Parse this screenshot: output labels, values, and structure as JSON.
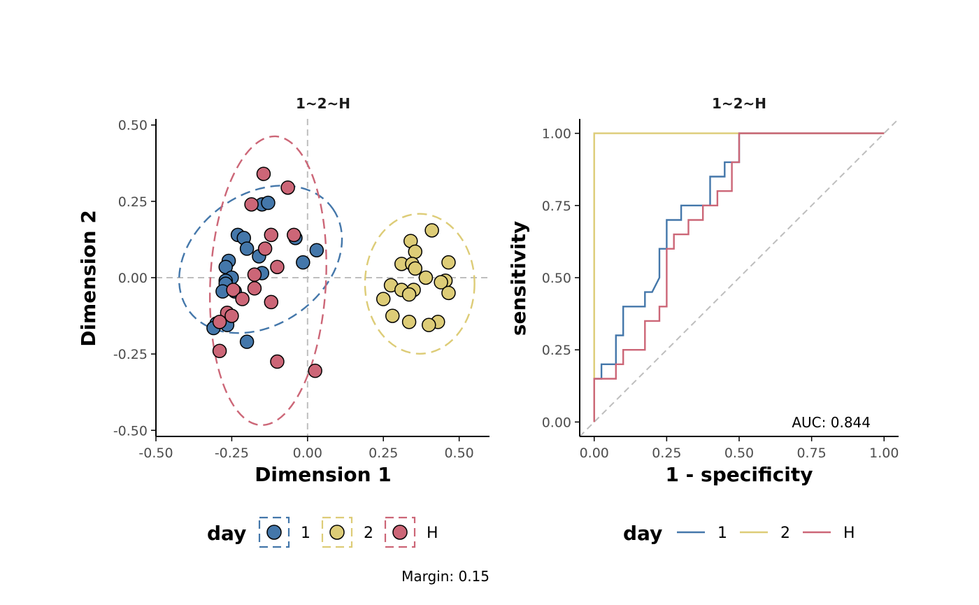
{
  "colors": {
    "1": "#4477AA",
    "2": "#DDCC77",
    "H": "#CC6677",
    "refline": "#BEBEBE",
    "axis": "#000000",
    "tick_text": "#4d4d4d"
  },
  "legend": {
    "title": "day",
    "labels": [
      "1",
      "2",
      "H"
    ]
  },
  "annotation": {
    "margin_text": "Margin: 0.15"
  },
  "chart_data": [
    {
      "type": "scatter",
      "title": "1~2~H",
      "xlabel": "Dimension 1",
      "ylabel": "Dimension 2",
      "xlim": [
        -0.5,
        0.6
      ],
      "ylim": [
        -0.52,
        0.52
      ],
      "xticks": [
        "-0.50",
        "-0.25",
        "0.00",
        "0.25",
        "0.50"
      ],
      "yticks": [
        "-0.50",
        "-0.25",
        "0.00",
        "0.25",
        "0.50"
      ],
      "xtick_values": [
        -0.5,
        -0.25,
        0,
        0.25,
        0.5
      ],
      "ytick_values": [
        -0.5,
        -0.25,
        0,
        0.25,
        0.5
      ],
      "reference_lines": {
        "x": 0,
        "y": 0
      },
      "ellipses": [
        {
          "group": "1",
          "center": [
            -0.155,
            0.06
          ],
          "radii": [
            0.29,
            0.215
          ],
          "angle_deg": 35
        },
        {
          "group": "2",
          "center": [
            0.37,
            -0.02
          ],
          "radii": [
            0.18,
            0.23
          ],
          "angle_deg": 0
        },
        {
          "group": "H",
          "center": [
            -0.13,
            -0.01
          ],
          "radii": [
            0.19,
            0.475
          ],
          "angle_deg": -3
        }
      ],
      "series": [
        {
          "name": "1",
          "points": [
            [
              -0.23,
              0.14
            ],
            [
              -0.21,
              0.13
            ],
            [
              -0.2,
              0.095
            ],
            [
              -0.16,
              0.07
            ],
            [
              -0.15,
              0.015
            ],
            [
              -0.15,
              0.24
            ],
            [
              -0.13,
              0.245
            ],
            [
              -0.04,
              0.13
            ],
            [
              -0.015,
              0.05
            ],
            [
              0.03,
              0.09
            ],
            [
              -0.26,
              0.055
            ],
            [
              -0.27,
              0.035
            ],
            [
              -0.25,
              0.0
            ],
            [
              -0.27,
              -0.01
            ],
            [
              -0.27,
              -0.02
            ],
            [
              -0.24,
              -0.045
            ],
            [
              -0.28,
              -0.045
            ],
            [
              -0.3,
              -0.15
            ],
            [
              -0.31,
              -0.165
            ],
            [
              -0.265,
              -0.155
            ],
            [
              -0.2,
              -0.21
            ]
          ]
        },
        {
          "name": "2",
          "points": [
            [
              0.34,
              0.12
            ],
            [
              0.41,
              0.155
            ],
            [
              0.355,
              0.085
            ],
            [
              0.31,
              0.045
            ],
            [
              0.345,
              0.045
            ],
            [
              0.355,
              0.03
            ],
            [
              0.465,
              0.05
            ],
            [
              0.39,
              0.0
            ],
            [
              0.455,
              -0.01
            ],
            [
              0.44,
              -0.015
            ],
            [
              0.275,
              -0.025
            ],
            [
              0.31,
              -0.04
            ],
            [
              0.35,
              -0.04
            ],
            [
              0.335,
              -0.055
            ],
            [
              0.465,
              -0.05
            ],
            [
              0.25,
              -0.07
            ],
            [
              0.28,
              -0.125
            ],
            [
              0.335,
              -0.145
            ],
            [
              0.43,
              -0.145
            ],
            [
              0.4,
              -0.155
            ]
          ]
        },
        {
          "name": "H",
          "points": [
            [
              -0.145,
              0.34
            ],
            [
              -0.065,
              0.295
            ],
            [
              -0.185,
              0.24
            ],
            [
              -0.12,
              0.14
            ],
            [
              -0.045,
              0.14
            ],
            [
              -0.14,
              0.095
            ],
            [
              -0.1,
              0.035
            ],
            [
              -0.175,
              0.01
            ],
            [
              -0.245,
              -0.04
            ],
            [
              -0.175,
              -0.035
            ],
            [
              -0.215,
              -0.07
            ],
            [
              -0.12,
              -0.08
            ],
            [
              -0.265,
              -0.115
            ],
            [
              -0.25,
              -0.125
            ],
            [
              -0.29,
              -0.145
            ],
            [
              -0.29,
              -0.24
            ],
            [
              -0.1,
              -0.275
            ],
            [
              0.025,
              -0.305
            ]
          ]
        }
      ]
    },
    {
      "type": "line",
      "title": "1~2~H",
      "xlabel": "1 - specificity",
      "ylabel": "sensitivity",
      "xlim": [
        -0.05,
        1.05
      ],
      "ylim": [
        -0.05,
        1.05
      ],
      "xticks": [
        "0.00",
        "0.25",
        "0.50",
        "0.75",
        "1.00"
      ],
      "yticks": [
        "0.00",
        "0.25",
        "0.50",
        "0.75",
        "1.00"
      ],
      "xtick_values": [
        0,
        0.25,
        0.5,
        0.75,
        1.0
      ],
      "ytick_values": [
        0,
        0.25,
        0.5,
        0.75,
        1.0
      ],
      "diagonal": true,
      "annotation": "AUC: 0.844",
      "series": [
        {
          "name": "1",
          "points": [
            [
              0,
              0
            ],
            [
              0,
              0.15
            ],
            [
              0.025,
              0.15
            ],
            [
              0.025,
              0.2
            ],
            [
              0.075,
              0.2
            ],
            [
              0.075,
              0.3
            ],
            [
              0.1,
              0.3
            ],
            [
              0.1,
              0.4
            ],
            [
              0.175,
              0.4
            ],
            [
              0.175,
              0.45
            ],
            [
              0.2,
              0.45
            ],
            [
              0.225,
              0.5
            ],
            [
              0.225,
              0.6
            ],
            [
              0.25,
              0.6
            ],
            [
              0.25,
              0.7
            ],
            [
              0.3,
              0.7
            ],
            [
              0.3,
              0.75
            ],
            [
              0.4,
              0.75
            ],
            [
              0.4,
              0.85
            ],
            [
              0.45,
              0.85
            ],
            [
              0.45,
              0.9
            ],
            [
              0.5,
              0.9
            ],
            [
              0.5,
              1.0
            ],
            [
              1.0,
              1.0
            ]
          ]
        },
        {
          "name": "2",
          "points": [
            [
              0,
              0
            ],
            [
              0,
              1.0
            ],
            [
              1.0,
              1.0
            ]
          ]
        },
        {
          "name": "H",
          "points": [
            [
              0,
              0
            ],
            [
              0,
              0.15
            ],
            [
              0.075,
              0.15
            ],
            [
              0.075,
              0.2
            ],
            [
              0.1,
              0.2
            ],
            [
              0.1,
              0.25
            ],
            [
              0.175,
              0.25
            ],
            [
              0.175,
              0.35
            ],
            [
              0.225,
              0.35
            ],
            [
              0.225,
              0.4
            ],
            [
              0.25,
              0.4
            ],
            [
              0.25,
              0.6
            ],
            [
              0.275,
              0.6
            ],
            [
              0.275,
              0.65
            ],
            [
              0.325,
              0.65
            ],
            [
              0.325,
              0.7
            ],
            [
              0.375,
              0.7
            ],
            [
              0.375,
              0.75
            ],
            [
              0.425,
              0.75
            ],
            [
              0.425,
              0.8
            ],
            [
              0.475,
              0.8
            ],
            [
              0.475,
              0.9
            ],
            [
              0.5,
              0.9
            ],
            [
              0.5,
              1.0
            ],
            [
              1.0,
              1.0
            ]
          ]
        }
      ]
    }
  ]
}
